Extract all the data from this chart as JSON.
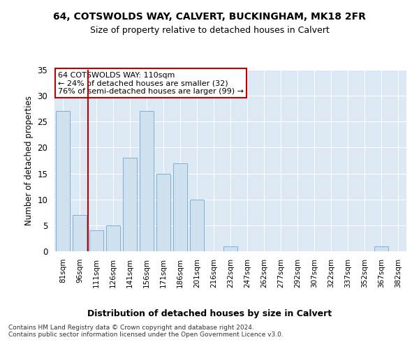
{
  "title1": "64, COTSWOLDS WAY, CALVERT, BUCKINGHAM, MK18 2FR",
  "title2": "Size of property relative to detached houses in Calvert",
  "xlabel": "Distribution of detached houses by size in Calvert",
  "ylabel": "Number of detached properties",
  "categories": [
    "81sqm",
    "96sqm",
    "111sqm",
    "126sqm",
    "141sqm",
    "156sqm",
    "171sqm",
    "186sqm",
    "201sqm",
    "216sqm",
    "232sqm",
    "247sqm",
    "262sqm",
    "277sqm",
    "292sqm",
    "307sqm",
    "322sqm",
    "337sqm",
    "352sqm",
    "367sqm",
    "382sqm"
  ],
  "values": [
    27,
    7,
    4,
    5,
    18,
    27,
    15,
    17,
    10,
    0,
    1,
    0,
    0,
    0,
    0,
    0,
    0,
    0,
    0,
    1,
    0
  ],
  "bar_color": "#cfe0ef",
  "bar_edge_color": "#7fb0d5",
  "highlight_bar_index": 2,
  "highlight_color": "#c00000",
  "annotation_text": "64 COTSWOLDS WAY: 110sqm\n← 24% of detached houses are smaller (32)\n76% of semi-detached houses are larger (99) →",
  "annotation_box_color": "#c00000",
  "ylim": [
    0,
    35
  ],
  "yticks": [
    0,
    5,
    10,
    15,
    20,
    25,
    30,
    35
  ],
  "footer": "Contains HM Land Registry data © Crown copyright and database right 2024.\nContains public sector information licensed under the Open Government Licence v3.0.",
  "bg_color": "#ffffff",
  "plot_bg_color": "#dce9f5"
}
